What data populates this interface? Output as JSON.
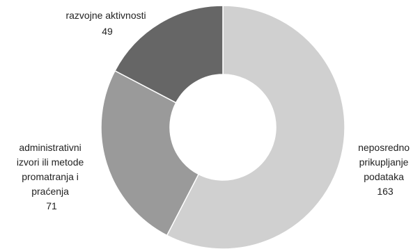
{
  "chart_data": {
    "type": "pie",
    "title": "",
    "categories": [
      "neposredno prikupljanje podataka",
      "administrativni izvori ili metode promatranja i praćenja",
      "razvojne aktivnosti"
    ],
    "values": [
      163,
      71,
      49
    ],
    "colors": [
      "#d0d0d0",
      "#9a9a9a",
      "#666666"
    ],
    "legend": "none",
    "slices": [
      {
        "label_lines": [
          "neposredno",
          "prikupljanje",
          "podataka"
        ],
        "value": 163,
        "value_text": "163",
        "color": "#d0d0d0"
      },
      {
        "label_lines": [
          "administrativni",
          "izvori ili metode",
          "promatranja i",
          "praćenja"
        ],
        "value": 71,
        "value_text": "71",
        "color": "#9a9a9a"
      },
      {
        "label_lines": [
          "razvojne aktivnosti"
        ],
        "value": 49,
        "value_text": "49",
        "color": "#666666"
      }
    ]
  }
}
